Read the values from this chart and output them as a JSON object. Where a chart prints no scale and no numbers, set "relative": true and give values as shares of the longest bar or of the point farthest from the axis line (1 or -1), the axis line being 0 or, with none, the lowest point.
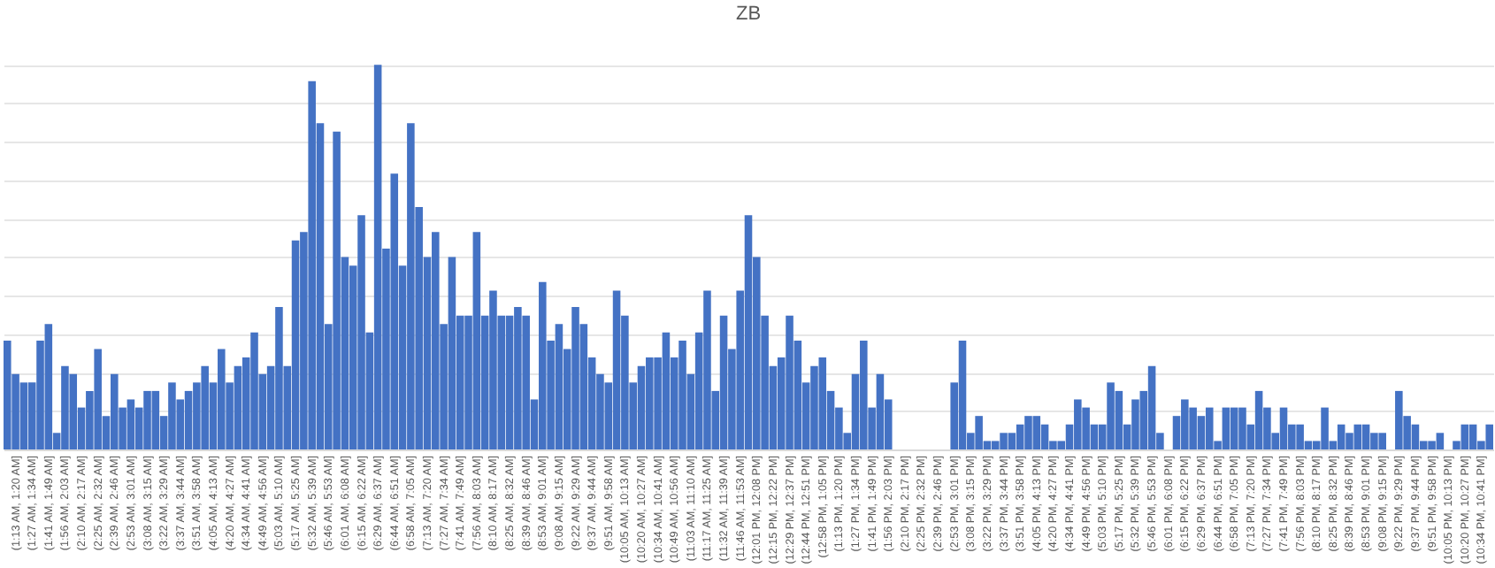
{
  "chart_data": {
    "type": "bar",
    "title": "ZB",
    "relative": true,
    "grid": "y",
    "color": "#4472c4",
    "categories": [
      null,
      "(1:13 AM, 1:20 AM]",
      null,
      "(1:27 AM, 1:34 AM]",
      null,
      "(1:41 AM, 1:49 AM]",
      null,
      "(1:56 AM, 2:03 AM]",
      null,
      "(2:10 AM, 2:17 AM]",
      null,
      "(2:25 AM, 2:32 AM]",
      null,
      "(2:39 AM, 2:46 AM]",
      null,
      "(2:53 AM, 3:01 AM]",
      null,
      "(3:08 AM, 3:15 AM]",
      null,
      "(3:22 AM, 3:29 AM]",
      null,
      "(3:37 AM, 3:44 AM]",
      null,
      "(3:51 AM, 3:58 AM]",
      null,
      "(4:05 AM, 4:13 AM]",
      null,
      "(4:20 AM, 4:27 AM]",
      null,
      "(4:34 AM, 4:41 AM]",
      null,
      "(4:49 AM, 4:56 AM]",
      null,
      "(5:03 AM, 5:10 AM]",
      null,
      "(5:17 AM, 5:25 AM]",
      null,
      "(5:32 AM, 5:39 AM]",
      null,
      "(5:46 AM, 5:53 AM]",
      null,
      "(6:01 AM, 6:08 AM]",
      null,
      "(6:15 AM, 6:22 AM]",
      null,
      "(6:29 AM, 6:37 AM]",
      null,
      "(6:44 AM, 6:51 AM]",
      null,
      "(6:58 AM, 7:05 AM]",
      null,
      "(7:13 AM, 7:20 AM]",
      null,
      "(7:27 AM, 7:34 AM]",
      null,
      "(7:41 AM, 7:49 AM]",
      null,
      "(7:56 AM, 8:03 AM]",
      null,
      "(8:10 AM, 8:17 AM]",
      null,
      "(8:25 AM, 8:32 AM]",
      null,
      "(8:39 AM, 8:46 AM]",
      null,
      "(8:53 AM, 9:01 AM]",
      null,
      "(9:08 AM, 9:15 AM]",
      null,
      "(9:22 AM, 9:29 AM]",
      null,
      "(9:37 AM, 9:44 AM]",
      null,
      "(9:51 AM, 9:58 AM]",
      null,
      "(10:05 AM, 10:13 AM]",
      null,
      "(10:20 AM, 10:27 AM]",
      null,
      "(10:34 AM, 10:41 AM]",
      null,
      "(10:49 AM, 10:56 AM]",
      null,
      "(11:03 AM, 11:10 AM]",
      null,
      "(11:17 AM, 11:25 AM]",
      null,
      "(11:32 AM, 11:39 AM]",
      null,
      "(11:46 AM, 11:53 AM]",
      null,
      "(12:01 PM, 12:08 PM]",
      null,
      "(12:15 PM, 12:22 PM]",
      null,
      "(12:29 PM, 12:37 PM]",
      null,
      "(12:44 PM, 12:51 PM]",
      null,
      "(12:58 PM, 1:05 PM]",
      null,
      "(1:13 PM, 1:20 PM]",
      null,
      "(1:27 PM, 1:34 PM]",
      null,
      "(1:41 PM, 1:49 PM]",
      null,
      "(1:56 PM, 2:03 PM]",
      null,
      "(2:10 PM, 2:17 PM]",
      null,
      "(2:25 PM, 2:32 PM]",
      null,
      "(2:39 PM, 2:46 PM]",
      null,
      "(2:53 PM, 3:01 PM]",
      null,
      "(3:08 PM, 3:15 PM]",
      null,
      "(3:22 PM, 3:29 PM]",
      null,
      "(3:37 PM, 3:44 PM]",
      null,
      "(3:51 PM, 3:58 PM]",
      null,
      "(4:05 PM, 4:13 PM]",
      null,
      "(4:20 PM, 4:27 PM]",
      null,
      "(4:34 PM, 4:41 PM]",
      null,
      "(4:49 PM, 4:56 PM]",
      null,
      "(5:03 PM, 5:10 PM]",
      null,
      "(5:17 PM, 5:25 PM]",
      null,
      "(5:32 PM, 5:39 PM]",
      null,
      "(5:46 PM, 5:53 PM]",
      null,
      "(6:01 PM, 6:08 PM]",
      null,
      "(6:15 PM, 6:22 PM]",
      null,
      "(6:29 PM, 6:37 PM]",
      null,
      "(6:44 PM, 6:51 PM]",
      null,
      "(6:58 PM, 7:05 PM]",
      null,
      "(7:13 PM, 7:20 PM]",
      null,
      "(7:27 PM, 7:34 PM]",
      null,
      "(7:41 PM, 7:49 PM]",
      null,
      "(7:56 PM, 8:03 PM]",
      null,
      "(8:10 PM, 8:17 PM]",
      null,
      "(8:25 PM, 8:32 PM]",
      null,
      "(8:39 PM, 8:46 PM]",
      null,
      "(8:53 PM, 9:01 PM]",
      null,
      "(9:08 PM, 9:15 PM]",
      null,
      "(9:22 PM, 9:29 PM]",
      null,
      "(9:37 PM, 9:44 PM]",
      null,
      "(9:51 PM, 9:58 PM]",
      null,
      "(10:05 PM, 10:13 PM]",
      null,
      "(10:20 PM, 10:27 PM]",
      null,
      "(10:34 PM, 10:41 PM]",
      null
    ],
    "values": [
      0.283,
      0.196,
      0.174,
      0.174,
      0.283,
      0.326,
      0.043,
      0.217,
      0.196,
      0.109,
      0.152,
      0.261,
      0.087,
      0.196,
      0.109,
      0.13,
      0.109,
      0.152,
      0.152,
      0.087,
      0.174,
      0.13,
      0.152,
      0.174,
      0.217,
      0.174,
      0.261,
      0.174,
      0.217,
      0.239,
      0.304,
      0.196,
      0.217,
      0.37,
      0.217,
      0.543,
      0.565,
      0.957,
      0.848,
      0.326,
      0.826,
      0.5,
      0.478,
      0.609,
      0.304,
      1,
      0.522,
      0.717,
      0.478,
      0.848,
      0.63,
      0.5,
      0.565,
      0.326,
      0.5,
      0.348,
      0.348,
      0.565,
      0.348,
      0.413,
      0.348,
      0.348,
      0.37,
      0.348,
      0.13,
      0.435,
      0.283,
      0.326,
      0.261,
      0.37,
      0.326,
      0.239,
      0.196,
      0.174,
      0.413,
      0.348,
      0.174,
      0.217,
      0.239,
      0.239,
      0.304,
      0.239,
      0.283,
      0.196,
      0.304,
      0.413,
      0.152,
      0.348,
      0.261,
      0.413,
      0.609,
      0.5,
      0.348,
      0.217,
      0.239,
      0.348,
      0.283,
      0.174,
      0.217,
      0.239,
      0.152,
      0.109,
      0.043,
      0.196,
      0.283,
      0.109,
      0.196,
      0.13,
      0,
      0,
      0,
      0,
      0,
      0,
      0,
      0.174,
      0.283,
      0.043,
      0.087,
      0.022,
      0.022,
      0.043,
      0.043,
      0.065,
      0.087,
      0.087,
      0.065,
      0.022,
      0.022,
      0.065,
      0.13,
      0.109,
      0.065,
      0.065,
      0.174,
      0.152,
      0.065,
      0.13,
      0.152,
      0.217,
      0.043,
      0,
      0.087,
      0.13,
      0.109,
      0.087,
      0.109,
      0.022,
      0.109,
      0.109,
      0.109,
      0.065,
      0.152,
      0.109,
      0.043,
      0.109,
      0.065,
      0.065,
      0.022,
      0.022,
      0.109,
      0.022,
      0.065,
      0.043,
      0.065,
      0.065,
      0.043,
      0.043,
      0,
      0.152,
      0.087,
      0.065,
      0.022,
      0.022,
      0.043,
      0,
      0.022,
      0.065,
      0.065,
      0.022,
      0.065
    ]
  }
}
